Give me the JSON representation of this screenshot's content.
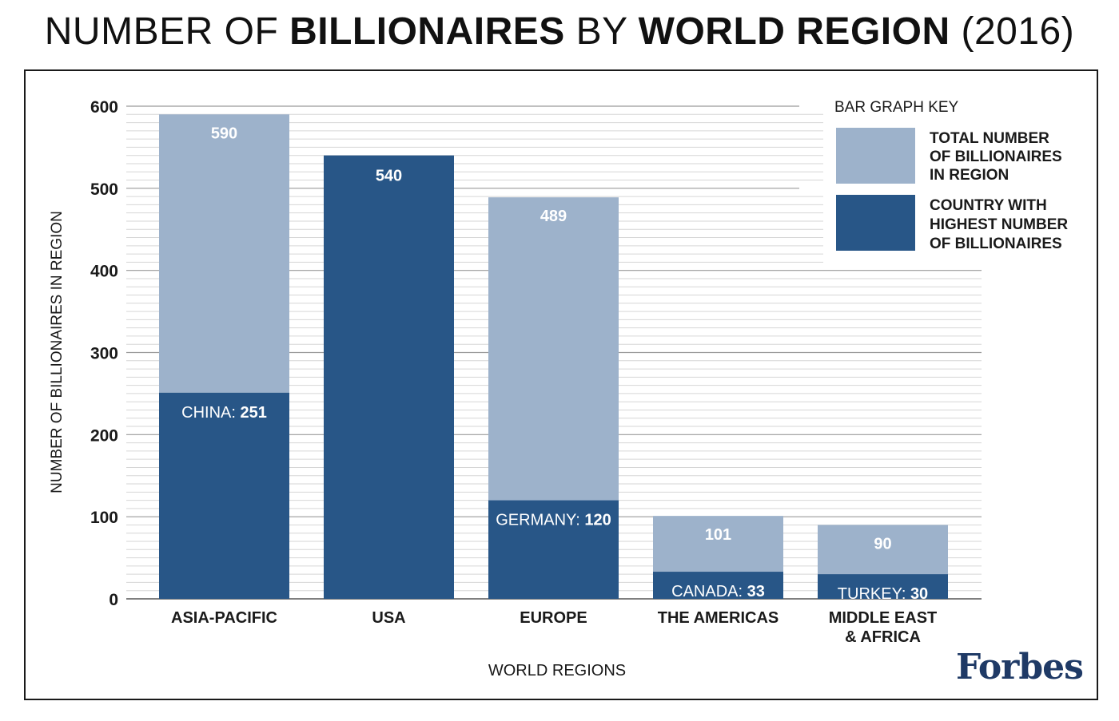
{
  "title": {
    "part1": "NUMBER OF",
    "part2": "BILLIONAIRES",
    "part3": "BY",
    "part4": "WORLD REGION",
    "part5": "(2016)"
  },
  "brand": "Forbes",
  "colors": {
    "total": "#9db2cb",
    "country": "#285687",
    "grid_major": "#9a9a9a",
    "grid_minor": "#d6d6d6",
    "text": "#1a1a1a"
  },
  "chart_data": {
    "type": "bar",
    "xlabel": "WORLD REGIONS",
    "ylabel": "NUMBER OF BILLIONAIRES IN REGION",
    "ylim": [
      0,
      600
    ],
    "yticks": [
      "0",
      "100",
      "200",
      "300",
      "400",
      "500",
      "600"
    ],
    "grid": true,
    "legend_placement": "top-right",
    "legend_title": "BAR GRAPH KEY",
    "categories": [
      [
        "ASIA-PACIFIC"
      ],
      [
        "USA"
      ],
      [
        "EUROPE"
      ],
      [
        "THE AMERICAS"
      ],
      [
        "MIDDLE EAST",
        "& AFRICA"
      ]
    ],
    "series": [
      {
        "name": [
          "TOTAL NUMBER",
          "OF BILLIONAIRES",
          "IN REGION"
        ],
        "values": [
          590,
          540,
          489,
          101,
          90
        ],
        "labels": [
          "590",
          "",
          "489",
          "101",
          "90"
        ]
      },
      {
        "name": [
          "COUNTRY WITH",
          "HIGHEST NUMBER",
          "OF BILLIONAIRES"
        ],
        "values": [
          251,
          540,
          120,
          33,
          30
        ],
        "country_names": [
          "CHINA:",
          "",
          "GERMANY:",
          "CANADA:",
          "TURKEY:"
        ],
        "labels": [
          "251",
          "540",
          "120",
          "33",
          "30"
        ]
      }
    ]
  }
}
